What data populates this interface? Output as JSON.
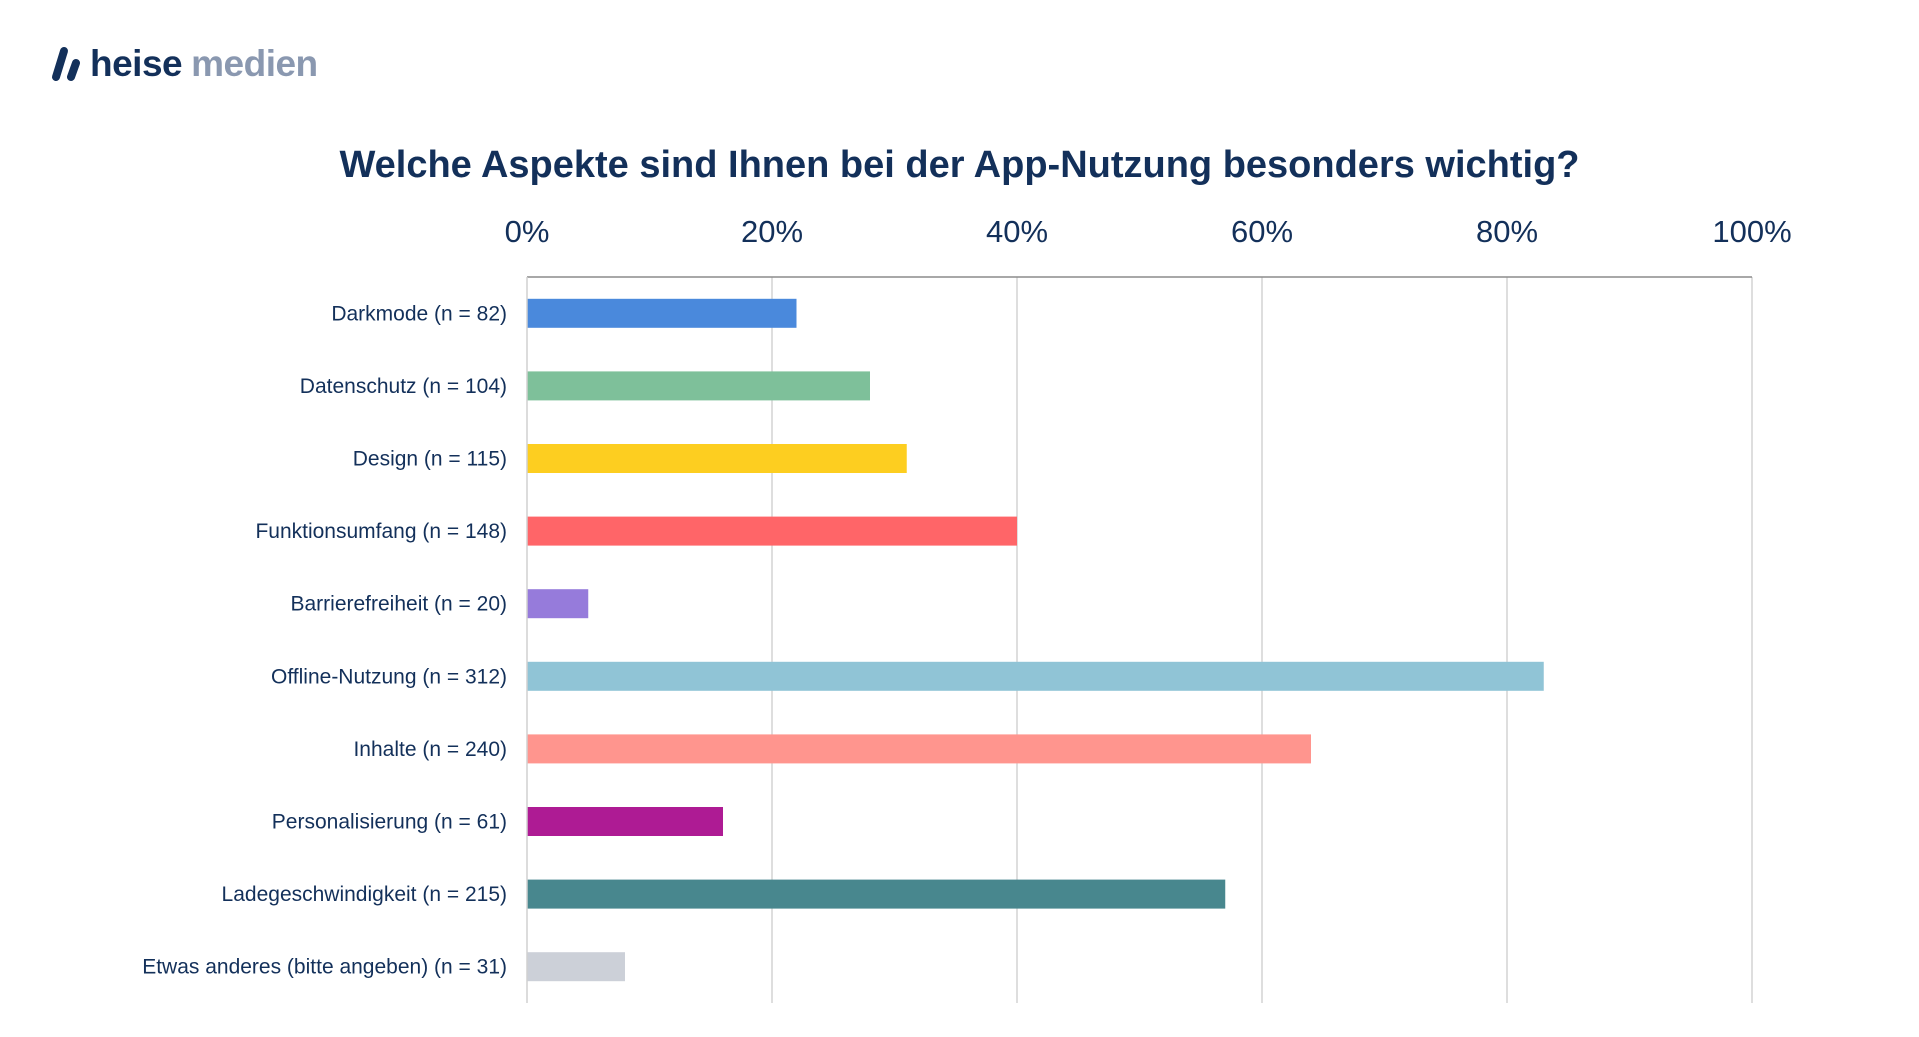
{
  "brand": {
    "logo_icon": "heise-slash-icon",
    "word1": "heise",
    "word2": "medien",
    "colors": {
      "primary": "#13305a",
      "secondary": "#8a98b0"
    }
  },
  "chart_data": {
    "type": "bar",
    "orientation": "horizontal",
    "title": "Welche Aspekte sind Ihnen bei der App-Nutzung besonders wichtig?",
    "xlabel": "",
    "ylabel": "",
    "xlim": [
      0,
      100
    ],
    "x_ticks": [
      "0%",
      "20%",
      "40%",
      "60%",
      "80%",
      "100%"
    ],
    "x_tick_values": [
      0,
      20,
      40,
      60,
      80,
      100
    ],
    "x_axis_position": "top",
    "grid": true,
    "legend": "none",
    "categories": [
      "Darkmode (n = 82)",
      "Datenschutz (n = 104)",
      "Design (n = 115)",
      "Funktionsumfang (n = 148)",
      "Barrierefreiheit (n = 20)",
      "Offline-Nutzung (n = 312)",
      "Inhalte (n = 240)",
      "Personalisierung (n = 61)",
      "Ladegeschwindigkeit (n = 215)",
      "Etwas anderes (bitte angeben) (n = 31)"
    ],
    "n": [
      82,
      104,
      115,
      148,
      20,
      312,
      240,
      61,
      215,
      31
    ],
    "values": [
      22,
      28,
      31,
      40,
      5,
      83,
      64,
      16,
      57,
      8
    ],
    "unit": "%",
    "colors": [
      "#4a89dc",
      "#7ec09a",
      "#fdce20",
      "#ff6568",
      "#967bdb",
      "#90c4d6",
      "#ff958e",
      "#ae1b94",
      "#48878e",
      "#ccd0d8"
    ]
  }
}
